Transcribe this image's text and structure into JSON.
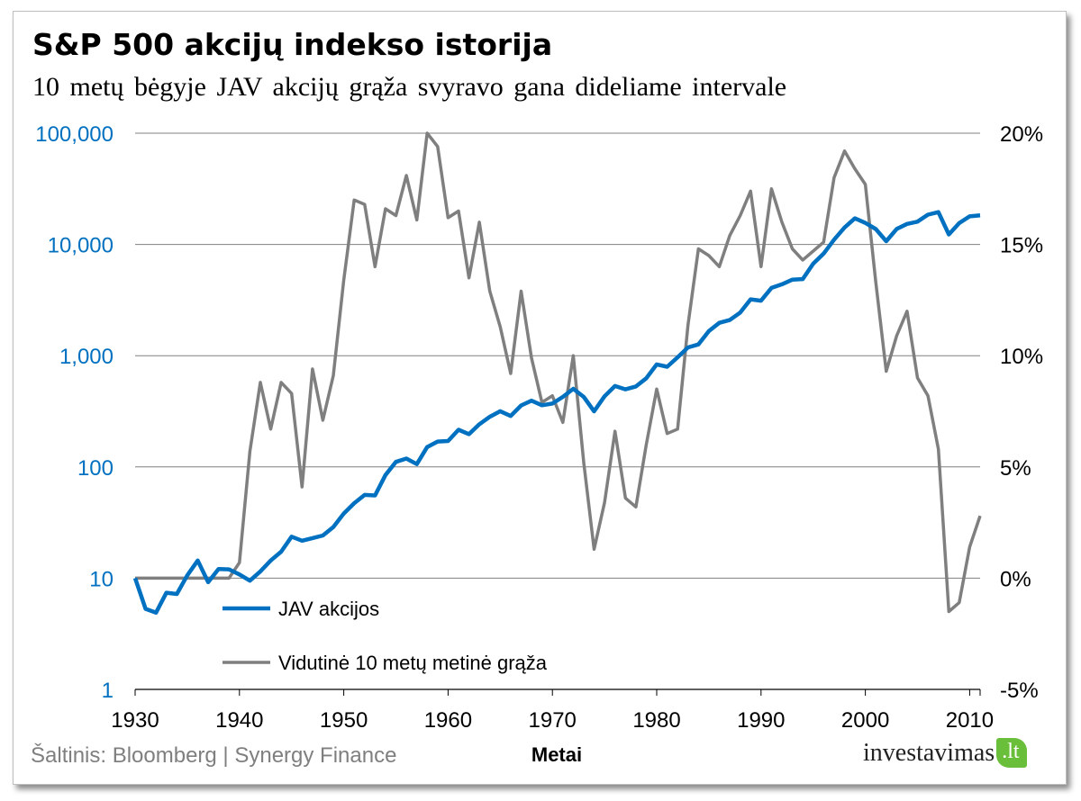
{
  "header": {
    "title": "S&P 500 akcijų indekso istorija",
    "subtitle": "10 metų bėgyje JAV akcijų grąža svyravo gana dideliame intervale"
  },
  "footer": {
    "source": "Šaltinis: Bloomberg | Synergy Finance",
    "logo_main": "investavimas",
    "logo_tld": ".lt"
  },
  "colors": {
    "stocks": "#0070c0",
    "returns": "#7f7f7f",
    "grid": "#808080",
    "axis_left_text": "#0070c0",
    "axis_right_text": "#000000"
  },
  "chart_data": {
    "type": "line",
    "xlabel": "Metai",
    "x": [
      1930,
      1931,
      1932,
      1933,
      1934,
      1935,
      1936,
      1937,
      1938,
      1939,
      1940,
      1941,
      1942,
      1943,
      1944,
      1945,
      1946,
      1947,
      1948,
      1949,
      1950,
      1951,
      1952,
      1953,
      1954,
      1955,
      1956,
      1957,
      1958,
      1959,
      1960,
      1961,
      1962,
      1963,
      1964,
      1965,
      1966,
      1967,
      1968,
      1969,
      1970,
      1971,
      1972,
      1973,
      1974,
      1975,
      1976,
      1977,
      1978,
      1979,
      1980,
      1981,
      1982,
      1983,
      1984,
      1985,
      1986,
      1987,
      1988,
      1989,
      1990,
      1991,
      1992,
      1993,
      1994,
      1995,
      1996,
      1997,
      1998,
      1999,
      2000,
      2001,
      2002,
      2003,
      2004,
      2005,
      2006,
      2007,
      2008,
      2009,
      2010,
      2011
    ],
    "xlim": [
      1930,
      2011
    ],
    "x_ticks": [
      1930,
      1940,
      1950,
      1960,
      1970,
      1980,
      1990,
      2000,
      2010
    ],
    "y_left": {
      "scale": "log",
      "lim": [
        1,
        100000
      ],
      "ticks": [
        1,
        10,
        100,
        1000,
        10000,
        100000
      ],
      "tick_labels": [
        "1",
        "10",
        "100",
        "1,000",
        "10,000",
        "100,000"
      ]
    },
    "y_right": {
      "scale": "linear",
      "lim": [
        -5,
        20
      ],
      "ticks": [
        -5,
        0,
        5,
        10,
        15,
        20
      ],
      "tick_labels": [
        "-5%",
        "0%",
        "5%",
        "10%",
        "15%",
        "20%"
      ]
    },
    "grid": true,
    "legend_position": "bottom-left",
    "series": [
      {
        "name": "JAV akcijos",
        "axis": "left",
        "color": "#0070c0",
        "values": [
          10,
          5.3,
          4.9,
          7.4,
          7.2,
          10.6,
          14.4,
          9.2,
          12.1,
          12.0,
          10.8,
          9.5,
          11.5,
          14.4,
          17.3,
          23.6,
          21.7,
          22.9,
          24.2,
          28.8,
          38.1,
          47.2,
          56.0,
          55.4,
          84.6,
          111,
          119,
          106,
          151,
          169,
          171,
          216,
          197,
          242,
          282,
          317,
          287,
          357,
          394,
          358,
          371,
          426,
          504,
          426,
          316,
          432,
          534,
          498,
          529,
          626,
          834,
          795,
          967,
          1187,
          1262,
          1663,
          1975,
          2091,
          2442,
          3211,
          3122,
          4068,
          4385,
          4826,
          4885,
          6713,
          8272,
          11030,
          14190,
          17170,
          15600,
          13740,
          10700,
          13780,
          15280,
          16020,
          18510,
          19530,
          12300,
          15540,
          17880,
          18250
        ]
      },
      {
        "name": "Vidutinė 10 metų metinė grąža",
        "axis": "right",
        "color": "#7f7f7f",
        "values": [
          0,
          0,
          0,
          0,
          0,
          0,
          0,
          0,
          0,
          0,
          0.7,
          5.7,
          8.8,
          6.7,
          8.8,
          8.3,
          4.1,
          9.4,
          7.1,
          9.1,
          13.4,
          17.0,
          16.8,
          14.0,
          16.6,
          16.3,
          18.1,
          16.1,
          20.0,
          19.4,
          16.2,
          16.5,
          13.5,
          16.0,
          12.9,
          11.3,
          9.2,
          12.9,
          9.9,
          7.9,
          8.2,
          7.0,
          10.0,
          5.2,
          1.3,
          3.4,
          6.6,
          3.6,
          3.2,
          6.0,
          8.5,
          6.5,
          6.7,
          11.4,
          14.8,
          14.5,
          14.0,
          15.4,
          16.3,
          17.4,
          14.0,
          17.5,
          16.0,
          14.8,
          14.3,
          14.7,
          15.1,
          18.0,
          19.2,
          18.4,
          17.7,
          13.3,
          9.3,
          10.9,
          12.0,
          9.0,
          8.2,
          5.8,
          -1.5,
          -1.1,
          1.4,
          2.8
        ]
      }
    ]
  }
}
